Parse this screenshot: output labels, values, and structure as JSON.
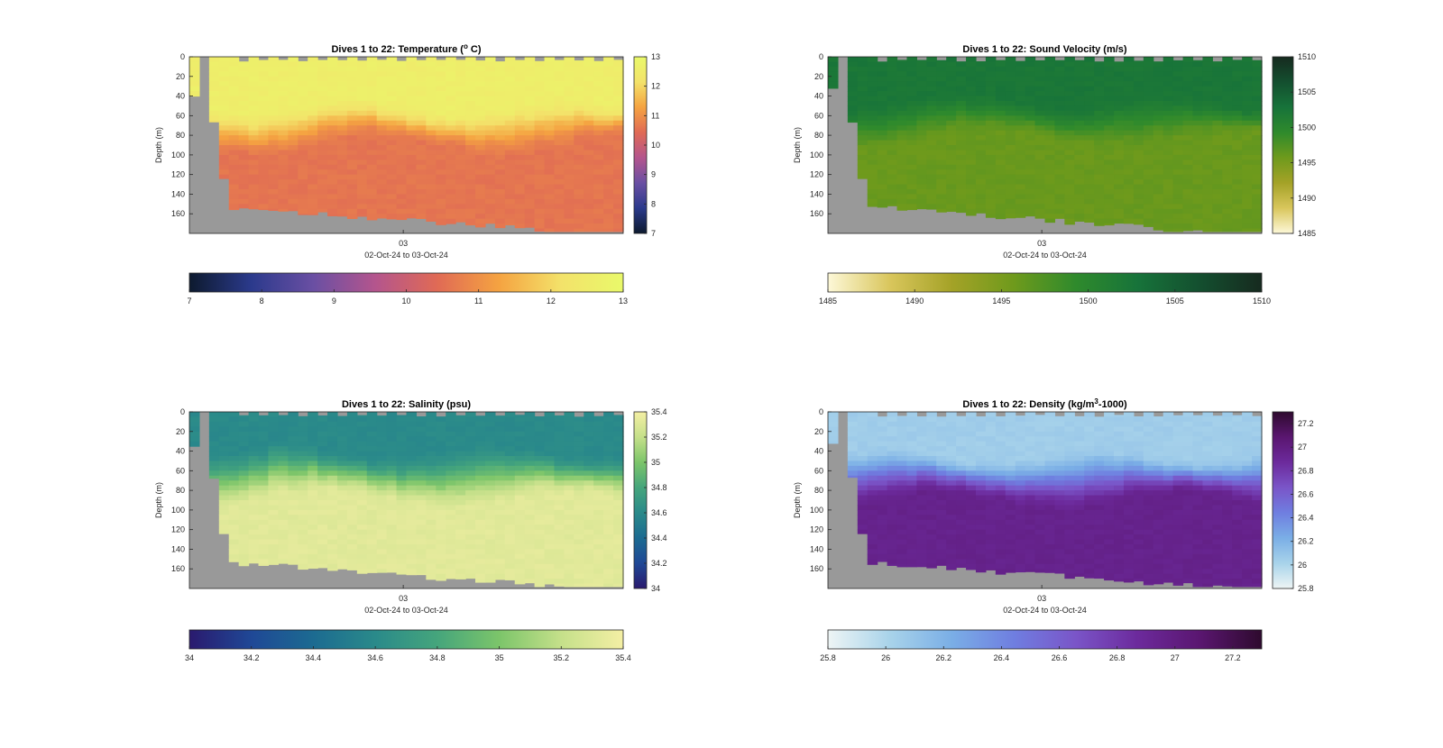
{
  "figure": {
    "background": "#ffffff",
    "nodata_color": "#999999"
  },
  "chart_data": [
    {
      "id": "temperature",
      "type": "heatmap",
      "title_prefix": "Dives 1 to 22: Temperature (",
      "title_sup": "o",
      "title_suffix": " C)",
      "ylabel": "Depth (m)",
      "xtick_labels": [
        "03"
      ],
      "xlabel": "02-Oct-24 to 03-Oct-24",
      "ylim": [
        0,
        180
      ],
      "y_ticks": [
        0,
        20,
        40,
        60,
        80,
        100,
        120,
        140,
        160
      ],
      "clim": [
        7,
        13
      ],
      "side_ticks": [
        7,
        8,
        9,
        10,
        11,
        12,
        13
      ],
      "bottom_ticks": [
        7,
        8,
        9,
        10,
        11,
        12,
        13
      ],
      "colormap": [
        "#0d1a2e",
        "#2b3a8c",
        "#6a4fa3",
        "#b4558d",
        "#e06a55",
        "#f5a341",
        "#f3e26a",
        "#e9f96a"
      ],
      "num_casts": 44,
      "first_cast_bottom_m": 40,
      "surface_value": 12.6,
      "deep_value": 10.6,
      "thermocline_top_m": 45,
      "thermocline_bottom_m": 90
    },
    {
      "id": "sound_velocity",
      "type": "heatmap",
      "title_prefix": "Dives 1 to 22: Sound Velocity (m/s)",
      "title_sup": "",
      "title_suffix": "",
      "ylabel": "Depth (m)",
      "xtick_labels": [
        "03"
      ],
      "xlabel": "02-Oct-24 to 03-Oct-24",
      "ylim": [
        0,
        180
      ],
      "y_ticks": [
        0,
        20,
        40,
        60,
        80,
        100,
        120,
        140,
        160
      ],
      "clim": [
        1485,
        1510
      ],
      "side_ticks": [
        1485,
        1490,
        1495,
        1500,
        1505,
        1510
      ],
      "bottom_ticks": [
        1485,
        1490,
        1495,
        1500,
        1505,
        1510
      ],
      "colormap": [
        "#fdf8d8",
        "#d9c65c",
        "#a4a227",
        "#6e9a1c",
        "#2f8a2c",
        "#17733a",
        "#144f2f",
        "#162a1f"
      ],
      "num_casts": 44,
      "first_cast_bottom_m": 32,
      "surface_value": 1502.3,
      "deep_value": 1496.0,
      "thermocline_top_m": 40,
      "thermocline_bottom_m": 85
    },
    {
      "id": "salinity",
      "type": "heatmap",
      "title_prefix": "Dives 1 to 22: Salinity (psu)",
      "title_sup": "",
      "title_suffix": "",
      "ylabel": "Depth (m)",
      "xtick_labels": [
        "03"
      ],
      "xlabel": "02-Oct-24 to 03-Oct-24",
      "ylim": [
        0,
        180
      ],
      "y_ticks": [
        0,
        20,
        40,
        60,
        80,
        100,
        120,
        140,
        160
      ],
      "clim": [
        34,
        35.4
      ],
      "side_ticks": [
        34,
        34.2,
        34.4,
        34.6,
        34.8,
        35,
        35.2,
        35.4
      ],
      "bottom_ticks": [
        34,
        34.2,
        34.4,
        34.6,
        34.8,
        35,
        35.2,
        35.4
      ],
      "colormap": [
        "#2a1a6e",
        "#1f4896",
        "#1c6b91",
        "#2a8a8a",
        "#45a57c",
        "#7cc56a",
        "#c5e08a",
        "#f4efa4"
      ],
      "num_casts": 44,
      "first_cast_bottom_m": 35,
      "surface_value": 34.6,
      "deep_value": 35.32,
      "thermocline_top_m": 35,
      "thermocline_bottom_m": 90
    },
    {
      "id": "density",
      "type": "heatmap",
      "title_prefix": "Dives 1 to 22: Density (kg/m",
      "title_sup": "3",
      "title_suffix": "-1000)",
      "ylabel": "Depth (m)",
      "xtick_labels": [
        "03"
      ],
      "xlabel": "02-Oct-24 to 03-Oct-24",
      "ylim": [
        0,
        180
      ],
      "y_ticks": [
        0,
        20,
        40,
        60,
        80,
        100,
        120,
        140,
        160
      ],
      "clim": [
        25.8,
        27.3
      ],
      "side_ticks": [
        25.8,
        26,
        26.2,
        26.4,
        26.6,
        26.8,
        27,
        27.2
      ],
      "bottom_ticks": [
        25.8,
        26,
        26.2,
        26.4,
        26.6,
        26.8,
        27,
        27.2
      ],
      "colormap": [
        "#eef5f5",
        "#a8d3ea",
        "#7aaee6",
        "#6f7ee0",
        "#7a55c8",
        "#6c2a9c",
        "#5a1670",
        "#2e0a2e"
      ],
      "num_casts": 44,
      "first_cast_bottom_m": 32,
      "surface_value": 26.05,
      "deep_value": 26.95,
      "thermocline_top_m": 40,
      "thermocline_bottom_m": 90
    }
  ]
}
